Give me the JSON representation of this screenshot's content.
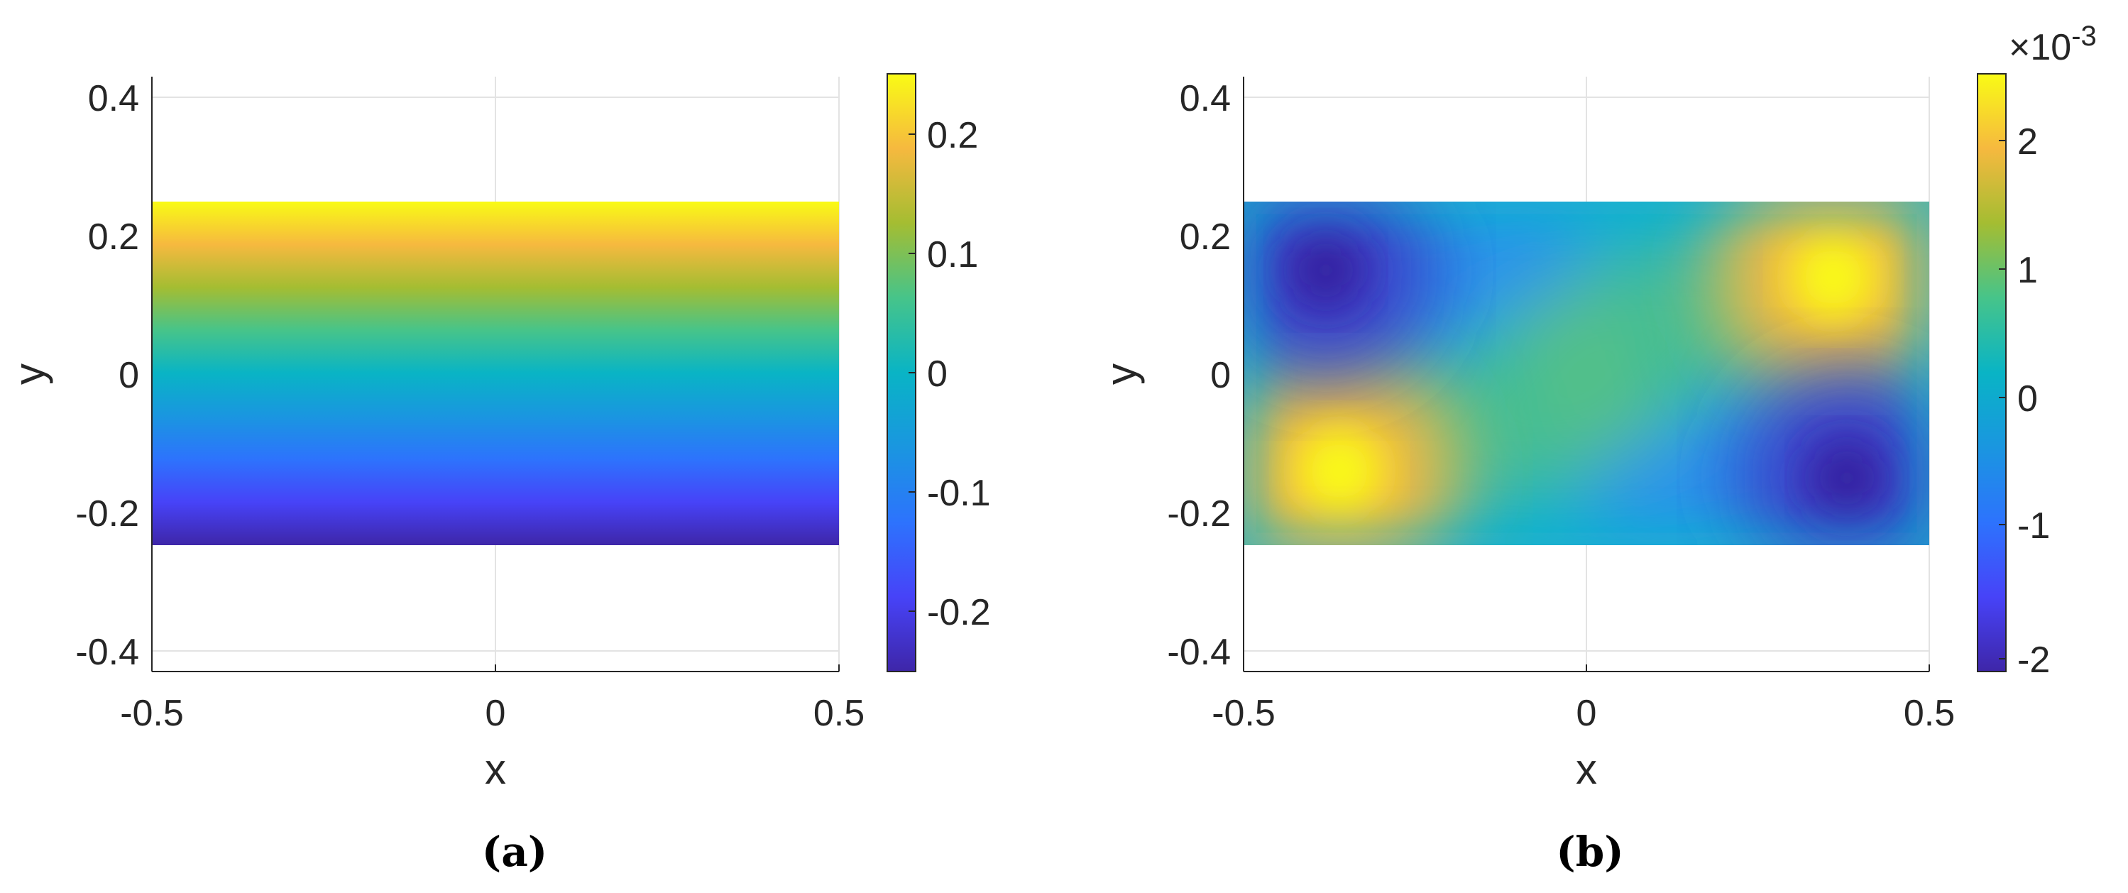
{
  "chart_data": [
    {
      "type": "heatmap",
      "caption": "(a)",
      "xlabel": "x",
      "ylabel": "y",
      "xlim": [
        -0.5,
        0.5
      ],
      "ylim": [
        -0.43,
        0.43
      ],
      "x_ticks": [
        "-0.5",
        "0",
        "0.5"
      ],
      "y_ticks": [
        "-0.4",
        "-0.2",
        "0",
        "0.2",
        "0.4"
      ],
      "grid": true,
      "domain": {
        "x": [
          -0.5,
          0.5
        ],
        "y": [
          -0.25,
          0.25
        ]
      },
      "field": "linear in y: value = y",
      "colorbar": {
        "limits": [
          -0.25,
          0.25
        ],
        "ticks": [
          "-0.2",
          "-0.1",
          "0",
          "0.1",
          "0.2"
        ],
        "exponent": "",
        "colormap": "parula"
      }
    },
    {
      "type": "heatmap",
      "caption": "(b)",
      "xlabel": "x",
      "ylabel": "y",
      "xlim": [
        -0.5,
        0.5
      ],
      "ylim": [
        -0.43,
        0.43
      ],
      "x_ticks": [
        "-0.5",
        "0",
        "0.5"
      ],
      "y_ticks": [
        "-0.4",
        "-0.2",
        "0",
        "0.2",
        "0.4"
      ],
      "grid": true,
      "domain": {
        "x": [
          -0.5,
          0.5
        ],
        "y": [
          -0.25,
          0.25
        ]
      },
      "extrema": [
        {
          "kind": "max",
          "x": 0.36,
          "y": 0.14,
          "value": 0.0024
        },
        {
          "kind": "max",
          "x": -0.36,
          "y": -0.14,
          "value": 0.0024
        },
        {
          "kind": "min",
          "x": -0.38,
          "y": 0.15,
          "value": -0.0022
        },
        {
          "kind": "min",
          "x": 0.38,
          "y": -0.15,
          "value": -0.0022
        }
      ],
      "colorbar": {
        "limits": [
          -0.0022,
          0.0025
        ],
        "ticks": [
          "-2",
          "-1",
          "0",
          "1",
          "2"
        ],
        "tick_values": [
          -0.002,
          -0.001,
          0,
          0.001,
          0.002
        ],
        "exponent": "×10",
        "exponent_power": "-3",
        "colormap": "parula"
      }
    }
  ]
}
